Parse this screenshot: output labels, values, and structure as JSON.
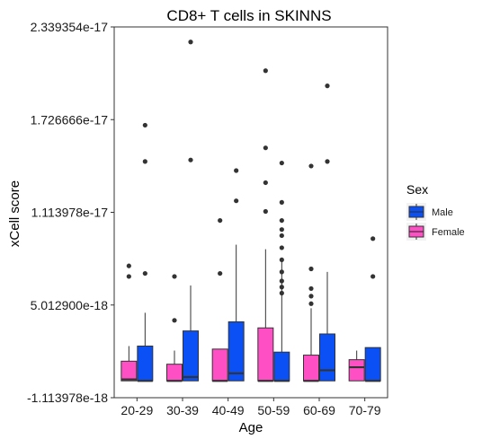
{
  "chart_data": {
    "type": "boxplot",
    "title": "CD8+ T cells in SKINNS",
    "xlabel": "Age",
    "ylabel": "xCell score",
    "categories": [
      "20-29",
      "30-39",
      "40-49",
      "50-59",
      "60-69",
      "70-79"
    ],
    "y_ticks": [
      {
        "value": -1.113978e-18,
        "label": "-1.113978e-18"
      },
      {
        "value": 5.0129e-18,
        "label": "5.012900e-18"
      },
      {
        "value": 1.113978e-17,
        "label": "1.113978e-17"
      },
      {
        "value": 1.726666e-17,
        "label": "1.726666e-17"
      },
      {
        "value": 2.339354e-17,
        "label": "2.339354e-17"
      }
    ],
    "ylim": [
      -1.113978e-18,
      2.339354e-17
    ],
    "legend": {
      "title": "Sex",
      "position": "right"
    },
    "series": [
      {
        "name": "Male",
        "color": "#0a50f5",
        "boxes": [
          {
            "category": "20-29",
            "min": 0.0,
            "q1": 0.0,
            "median": 0.0,
            "q3": 2.3e-18,
            "max": 4.5e-18,
            "outliers": [
              7.1e-18,
              1.45e-17,
              1.69e-17
            ]
          },
          {
            "category": "30-39",
            "min": 0.0,
            "q1": 0.0,
            "median": 2.5e-19,
            "q3": 3.3e-18,
            "max": 6.3e-18,
            "outliers": [
              1.46e-17,
              2.24e-17
            ]
          },
          {
            "category": "40-49",
            "min": 0.0,
            "q1": 0.0,
            "median": 5e-19,
            "q3": 3.9e-18,
            "max": 9e-18,
            "outliers": [
              1.19e-17,
              1.39e-17
            ]
          },
          {
            "category": "50-59",
            "min": 0.0,
            "q1": 0.0,
            "median": 0.0,
            "q3": 1.9e-18,
            "max": 8.1e-18,
            "outliers": [
              5.8e-18,
              6.2e-18,
              6.6e-18,
              7.2e-18,
              8e-18,
              8.8e-18,
              9.6e-18,
              1e-17,
              1.06e-17,
              1.18e-17,
              1.44e-17
            ]
          },
          {
            "category": "60-69",
            "min": 0.0,
            "q1": 0.0,
            "median": 7e-19,
            "q3": 3.1e-18,
            "max": 7.2e-18,
            "outliers": [
              1.45e-17,
              1.95e-17
            ]
          },
          {
            "category": "70-79",
            "min": 0.0,
            "q1": 0.0,
            "median": 0.0,
            "q3": 2.2e-18,
            "max": 2.2e-18,
            "outliers": [
              6.9e-18,
              9.4e-18
            ]
          }
        ]
      },
      {
        "name": "Female",
        "color": "#ff4fc4",
        "boxes": [
          {
            "category": "20-29",
            "min": 0.0,
            "q1": 0.0,
            "median": 1e-19,
            "q3": 1.3e-18,
            "max": 2.3e-18,
            "outliers": [
              6.9e-18,
              7.6e-18
            ]
          },
          {
            "category": "30-39",
            "min": 0.0,
            "q1": 0.0,
            "median": 0.0,
            "q3": 1.1e-18,
            "max": 2e-18,
            "outliers": [
              4e-18,
              6.9e-18
            ]
          },
          {
            "category": "40-49",
            "min": 0.0,
            "q1": 0.0,
            "median": 0.0,
            "q3": 2.1e-18,
            "max": 2.1e-18,
            "outliers": [
              7.1e-18,
              1.06e-17
            ]
          },
          {
            "category": "50-59",
            "min": 0.0,
            "q1": 0.0,
            "median": 0.0,
            "q3": 3.5e-18,
            "max": 8.7e-18,
            "outliers": [
              1.12e-17,
              1.31e-17,
              1.54e-17,
              2.05e-17
            ]
          },
          {
            "category": "60-69",
            "min": 0.0,
            "q1": 0.0,
            "median": 0.0,
            "q3": 1.7e-18,
            "max": 4.8e-18,
            "outliers": [
              5.1e-18,
              5.6e-18,
              6.1e-18,
              7.4e-18,
              1.42e-17
            ]
          },
          {
            "category": "70-79",
            "min": 0.0,
            "q1": 0.0,
            "median": 9e-19,
            "q3": 1.4e-18,
            "max": 2e-18,
            "outliers": []
          }
        ]
      }
    ]
  }
}
